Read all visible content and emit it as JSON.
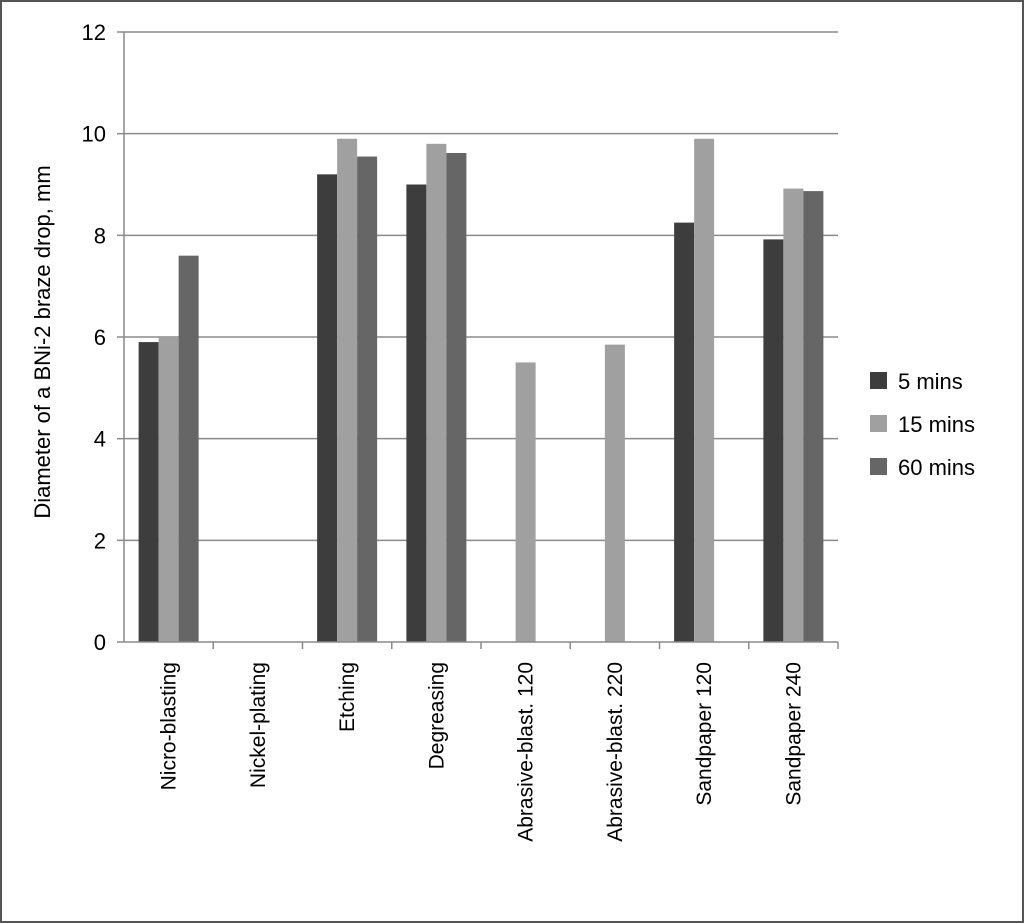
{
  "chart_data": {
    "type": "bar",
    "title": "",
    "xlabel": "",
    "ylabel": "Diameter of a BNi-2 braze drop, mm",
    "ylim": [
      0,
      12
    ],
    "yticks": [
      0,
      2,
      4,
      6,
      8,
      10,
      12
    ],
    "grid": true,
    "legend_position": "right",
    "categories": [
      "Nicro-blasting",
      "Nickel-plating",
      "Etching",
      "Degreasing",
      "Abrasive-blast. 120",
      "Abrasive-blast. 220",
      "Sandpaper 120",
      "Sandpaper 240"
    ],
    "series": [
      {
        "name": "5 mins",
        "color": "#3d3d3d",
        "values": [
          5.9,
          null,
          9.2,
          9.0,
          null,
          null,
          8.25,
          7.92
        ]
      },
      {
        "name": "15 mins",
        "color": "#a0a0a0",
        "values": [
          6.0,
          null,
          9.9,
          9.8,
          5.5,
          5.85,
          9.9,
          8.92
        ]
      },
      {
        "name": "60 mins",
        "color": "#666666",
        "values": [
          7.6,
          null,
          9.55,
          9.62,
          null,
          null,
          null,
          8.87
        ]
      }
    ]
  }
}
